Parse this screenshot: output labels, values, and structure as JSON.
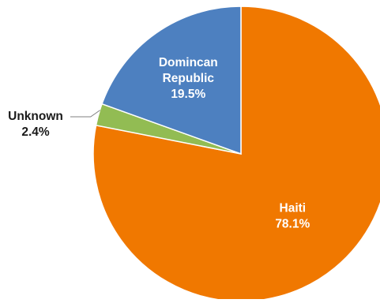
{
  "chart_data": {
    "type": "pie",
    "title": "",
    "slices": [
      {
        "label": "Haiti",
        "label_lines": [
          "Haiti"
        ],
        "percent_label": "78.1%",
        "value": 78.1,
        "color": "#F07800",
        "label_color": "#FFFFFF",
        "label_placement": "inside"
      },
      {
        "label": "Unknown",
        "label_lines": [
          "Unknown"
        ],
        "percent_label": "2.4%",
        "value": 2.4,
        "color": "#92BC53",
        "label_color": "#1A1A1A",
        "label_placement": "outside-left"
      },
      {
        "label": "Domincan Republic",
        "label_lines": [
          "Domincan",
          "Republic"
        ],
        "percent_label": "19.5%",
        "value": 19.5,
        "color": "#4D80C0",
        "label_color": "#FFFFFF",
        "label_placement": "inside"
      }
    ],
    "start": "12 o'clock",
    "direction": "clockwise",
    "legend": "none",
    "slice_border_color": "#FFFFFF"
  }
}
